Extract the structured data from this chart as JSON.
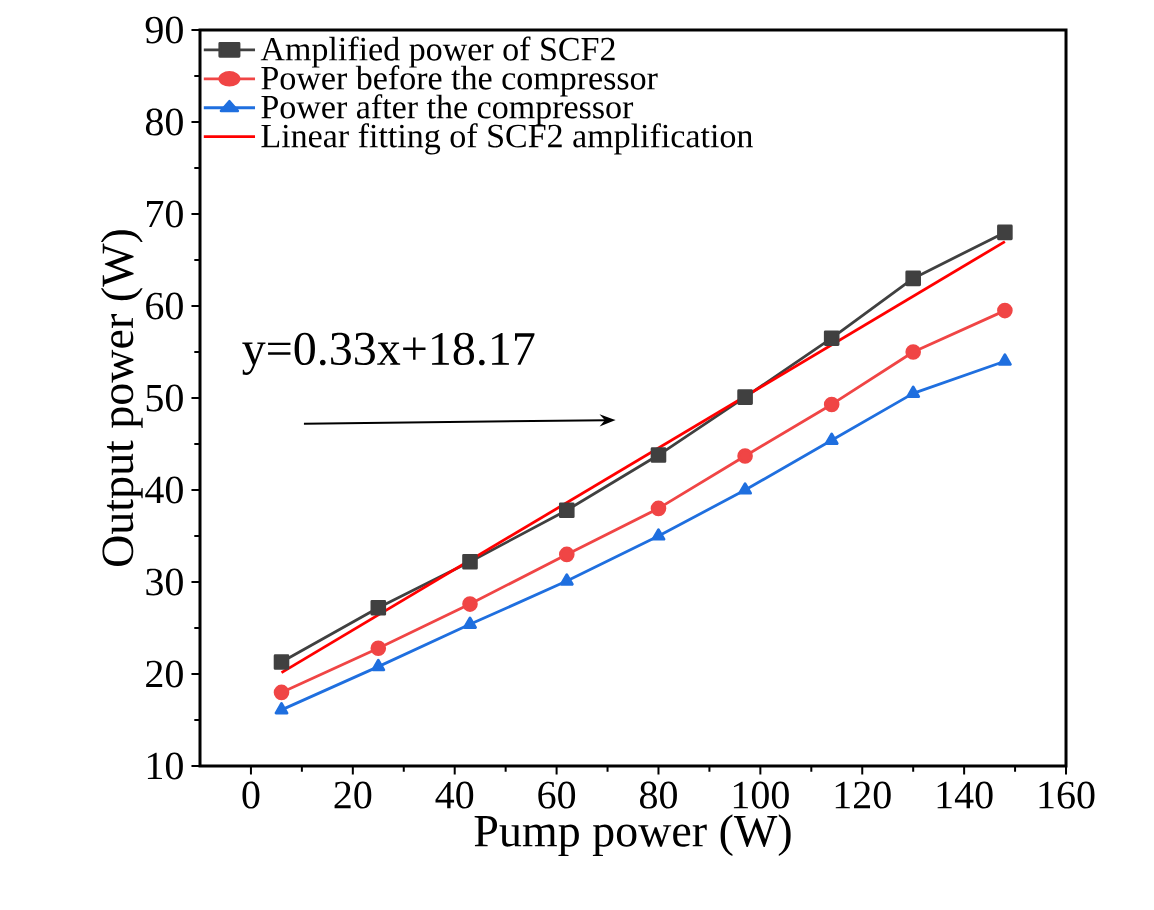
{
  "chart_data": {
    "type": "line",
    "xlabel": "Pump power (W)",
    "ylabel": "Output power (W)",
    "xlim": [
      -10,
      160
    ],
    "xticks": [
      0,
      20,
      40,
      60,
      80,
      100,
      120,
      140,
      160
    ],
    "ylim": [
      10,
      90
    ],
    "yticks": [
      10,
      20,
      30,
      40,
      50,
      60,
      70,
      80,
      90
    ],
    "x": [
      6,
      25,
      43,
      62,
      80,
      97,
      114,
      130,
      148
    ],
    "legend": "top left",
    "grid": false,
    "series": [
      {
        "name": "Amplified power of SCF2",
        "color": "#404040",
        "marker": "square",
        "values": [
          21.3,
          27.2,
          32.2,
          37.8,
          43.8,
          50.1,
          56.5,
          63.0,
          68.0
        ]
      },
      {
        "name": "Power before the compressor",
        "color": "#f04545",
        "marker": "circle",
        "values": [
          18.0,
          22.8,
          27.6,
          33.0,
          38.0,
          43.7,
          49.3,
          55.0,
          59.5
        ]
      },
      {
        "name": "Power after the compressor",
        "color": "#1f6fdf",
        "marker": "triangle",
        "values": [
          16.1,
          20.8,
          25.4,
          30.1,
          35.0,
          40.0,
          45.4,
          50.5,
          54.0
        ]
      },
      {
        "name": "Linear fitting of SCF2 amplification",
        "color": "#ff0000",
        "marker": "none",
        "x": [
          6,
          148
        ],
        "values": [
          20.15,
          67.0
        ]
      }
    ],
    "annotations": [
      "y=0.33x+18.17"
    ]
  }
}
